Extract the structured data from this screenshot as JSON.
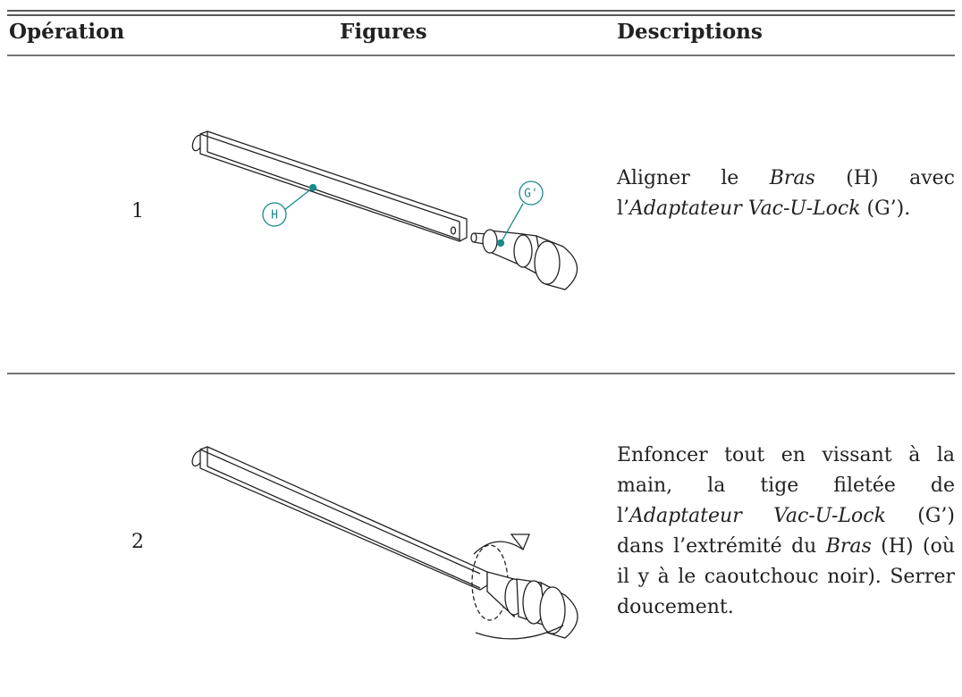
{
  "header": {
    "operation": "Opération",
    "figures": "Figures",
    "descriptions": "Descriptions"
  },
  "rows": [
    {
      "operation": "1",
      "figure_labels": [
        "H",
        "G'"
      ],
      "description": [
        {
          "text": "Aligner le ",
          "italic": false
        },
        {
          "text": "Bras",
          "italic": true
        },
        {
          "text": " (H) avec l’",
          "italic": false
        },
        {
          "text": "Adaptateur Vac-U-Lock",
          "italic": true
        },
        {
          "text": " (G’).",
          "italic": false
        }
      ]
    },
    {
      "operation": "2",
      "figure_labels": [],
      "description": [
        {
          "text": "Enfoncer tout en vissant à la main, la tige filetée de l’",
          "italic": false
        },
        {
          "text": "Adaptateur Vac-U-Lock",
          "italic": true
        },
        {
          "text": " (G’) dans l’extrémité du ",
          "italic": false
        },
        {
          "text": "Bras",
          "italic": true
        },
        {
          "text": " (H) (où il y à le caoutchouc noir). Serrer doucement.",
          "italic": false
        }
      ]
    }
  ]
}
